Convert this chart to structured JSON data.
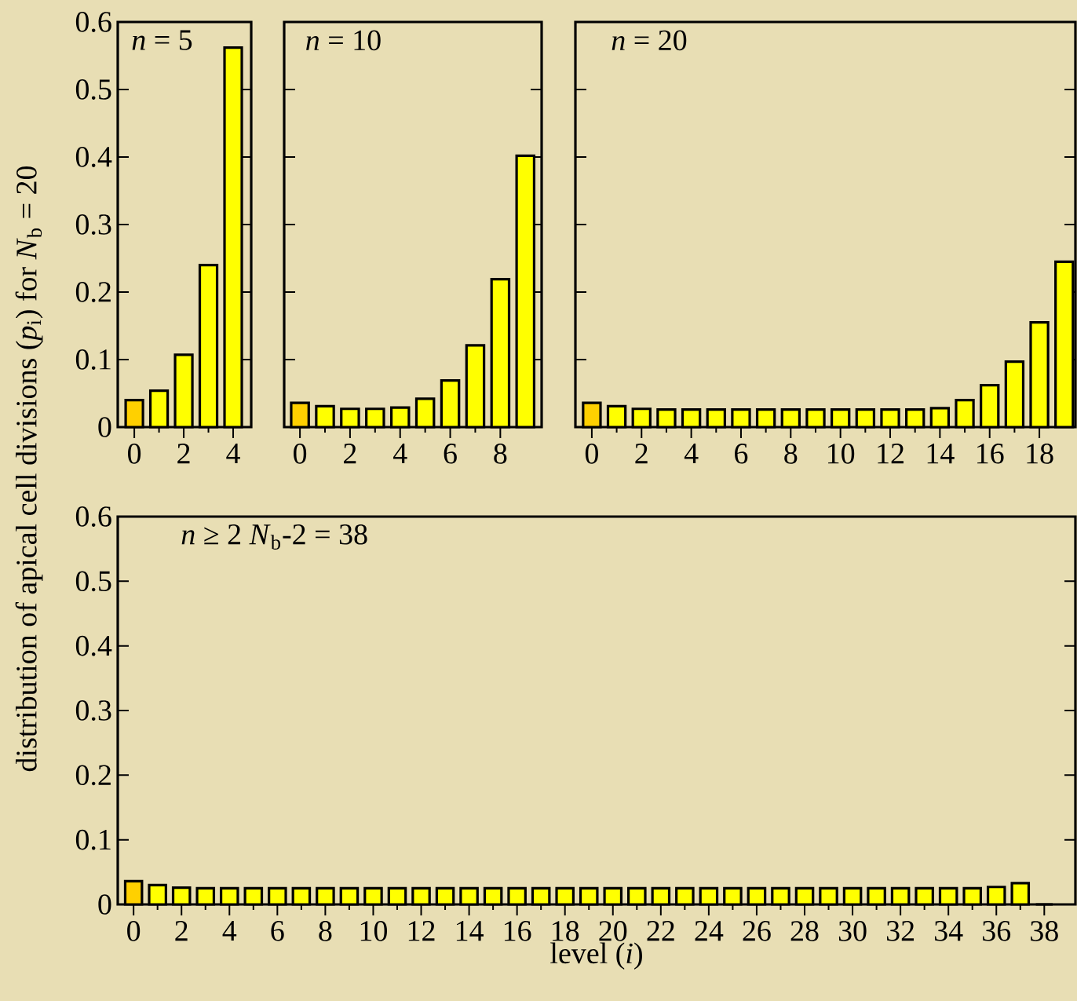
{
  "chart_data": [
    {
      "type": "bar",
      "title": "*n* = 5",
      "ylabel": "distribution of apical cell divisions (*p*$_{i}$)  for *N*$_{b}$ = 20",
      "x": [
        0,
        1,
        2,
        3,
        4
      ],
      "values": [
        0.04,
        0.054,
        0.107,
        0.24,
        0.562
      ],
      "colors": [
        "#ffd000",
        "#ffff00",
        "#ffff00",
        "#ffff00",
        "#ffff00"
      ],
      "xlim": [
        -0.67,
        4.73
      ],
      "xticks": [
        0,
        2,
        4
      ],
      "ylim": [
        0,
        0.6
      ],
      "yticks": [
        0,
        0.1,
        0.2,
        0.3,
        0.4,
        0.5,
        0.6
      ]
    },
    {
      "type": "bar",
      "title": "*n* = 10",
      "x": [
        0,
        1,
        2,
        3,
        4,
        5,
        6,
        7,
        8,
        9
      ],
      "values": [
        0.036,
        0.031,
        0.027,
        0.027,
        0.029,
        0.042,
        0.069,
        0.121,
        0.219,
        0.402
      ],
      "colors": [
        "#ffd000",
        "#ffff00",
        "#ffff00",
        "#ffff00",
        "#ffff00",
        "#ffff00",
        "#ffff00",
        "#ffff00",
        "#ffff00",
        "#ffff00"
      ],
      "xlim": [
        -0.63,
        9.65
      ],
      "xticks": [
        0,
        2,
        4,
        6,
        8
      ],
      "ylim": [
        0,
        0.6
      ],
      "yticks": [
        0,
        0.1,
        0.2,
        0.3,
        0.4,
        0.5,
        0.6
      ],
      "tick_labels": "x"
    },
    {
      "type": "bar",
      "title": "*n* = 20",
      "x": [
        0,
        1,
        2,
        3,
        4,
        5,
        6,
        7,
        8,
        9,
        10,
        11,
        12,
        13,
        14,
        15,
        16,
        17,
        18,
        19
      ],
      "values": [
        0.036,
        0.031,
        0.027,
        0.026,
        0.026,
        0.026,
        0.026,
        0.026,
        0.026,
        0.026,
        0.026,
        0.026,
        0.026,
        0.026,
        0.028,
        0.04,
        0.062,
        0.097,
        0.155,
        0.245
      ],
      "colors": [
        "#ffd000",
        "#ffff00",
        "#ffff00",
        "#ffff00",
        "#ffff00",
        "#ffff00",
        "#ffff00",
        "#ffff00",
        "#ffff00",
        "#ffff00",
        "#ffff00",
        "#ffff00",
        "#ffff00",
        "#ffff00",
        "#ffff00",
        "#ffff00",
        "#ffff00",
        "#ffff00",
        "#ffff00",
        "#ffff00"
      ],
      "xlim": [
        -0.66,
        19.45
      ],
      "xticks": [
        0,
        2,
        4,
        6,
        8,
        10,
        12,
        14,
        16,
        18
      ],
      "ylim": [
        0,
        0.6
      ],
      "yticks": [
        0,
        0.1,
        0.2,
        0.3,
        0.4,
        0.5,
        0.6
      ],
      "tick_labels": "x"
    },
    {
      "type": "bar",
      "title": "*n*  ≥  2 *N*$_{b}$-2  =  38",
      "xlabel": "level (*i*)",
      "x": [
        0,
        1,
        2,
        3,
        4,
        5,
        6,
        7,
        8,
        9,
        10,
        11,
        12,
        13,
        14,
        15,
        16,
        17,
        18,
        19,
        20,
        21,
        22,
        23,
        24,
        25,
        26,
        27,
        28,
        29,
        30,
        31,
        32,
        33,
        34,
        35,
        36,
        37,
        38
      ],
      "values": [
        0.036,
        0.03,
        0.026,
        0.025,
        0.025,
        0.025,
        0.025,
        0.025,
        0.025,
        0.025,
        0.025,
        0.025,
        0.025,
        0.025,
        0.025,
        0.025,
        0.025,
        0.025,
        0.025,
        0.025,
        0.025,
        0.025,
        0.025,
        0.025,
        0.025,
        0.025,
        0.025,
        0.025,
        0.025,
        0.025,
        0.025,
        0.025,
        0.025,
        0.025,
        0.025,
        0.025,
        0.027,
        0.033,
        0
      ],
      "colors": [
        "#ffd000",
        "#ffff00",
        "#ffff00",
        "#ffff00",
        "#ffff00",
        "#ffff00",
        "#ffff00",
        "#ffff00",
        "#ffff00",
        "#ffff00",
        "#ffff00",
        "#ffff00",
        "#ffff00",
        "#ffff00",
        "#ffff00",
        "#ffff00",
        "#ffff00",
        "#ffff00",
        "#ffff00",
        "#ffff00",
        "#ffff00",
        "#ffff00",
        "#ffff00",
        "#ffff00",
        "#ffff00",
        "#ffff00",
        "#ffff00",
        "#ffff00",
        "#ffff00",
        "#ffff00",
        "#ffff00",
        "#ffff00",
        "#ffff00",
        "#ffff00",
        "#ffff00",
        "#ffff00",
        "#ffff00",
        "#ffff00",
        "#000000"
      ],
      "xlim": [
        -0.66,
        39.3
      ],
      "xticks": [
        0,
        2,
        4,
        6,
        8,
        10,
        12,
        14,
        16,
        18,
        20,
        22,
        24,
        26,
        28,
        30,
        32,
        34,
        36,
        38
      ],
      "ylim": [
        0,
        0.6
      ],
      "yticks": [
        0,
        0.1,
        0.2,
        0.3,
        0.4,
        0.5,
        0.6
      ]
    }
  ]
}
